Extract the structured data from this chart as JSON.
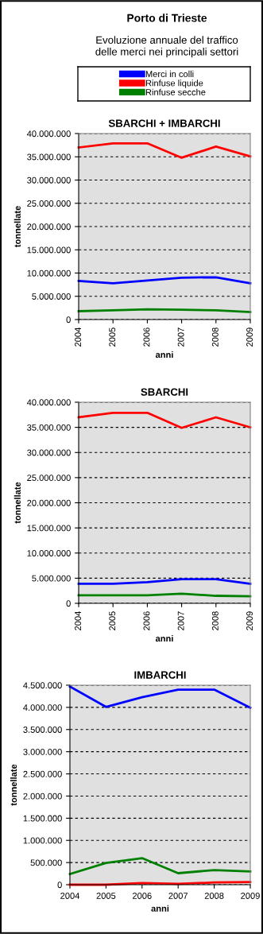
{
  "chart_data": [
    {
      "type": "other",
      "title": "Porto di Trieste",
      "subtitle": "Evoluzione annuale del traffico\ndelle merci nei principali settori"
    },
    {
      "type": "line",
      "title": "SBARCHI + IMBARCHI",
      "xlabel": "anni",
      "ylabel": "tonnellate",
      "categories": [
        "2004",
        "2005",
        "2006",
        "2007",
        "2008",
        "2009"
      ],
      "series": [
        {
          "name": "Merci in colli",
          "color": "#0000ff",
          "values": [
            8300000,
            7800000,
            8400000,
            9000000,
            9100000,
            7800000
          ]
        },
        {
          "name": "Rinfuse liquide",
          "color": "#ff0000",
          "values": [
            37000000,
            37900000,
            37900000,
            34800000,
            37200000,
            35100000
          ]
        },
        {
          "name": "Rinfuse secche",
          "color": "#008000",
          "values": [
            1800000,
            2000000,
            2200000,
            2100000,
            2000000,
            1600000
          ]
        }
      ],
      "ylim": [
        0,
        40000000
      ],
      "yticks": [
        0,
        {
          "value": 5000000,
          "label": "5.000.000"
        },
        {
          "value": 10000000,
          "label": "10.000.000"
        },
        {
          "value": 15000000,
          "label": "15.000.000"
        },
        {
          "value": 20000000,
          "label": "20.000.000"
        },
        {
          "value": 25000000,
          "label": "25.000.000"
        },
        {
          "value": 30000000,
          "label": "30.000.000"
        },
        {
          "value": 35000000,
          "label": "35.000.000"
        },
        {
          "value": 40000000,
          "label": "40.000.000"
        }
      ],
      "grid": "y",
      "legend": "top",
      "line_style": "solid"
    },
    {
      "type": "line",
      "title": "SBARCHI",
      "xlabel": "anni",
      "ylabel": "tonnellate",
      "categories": [
        "2004",
        "2005",
        "2006",
        "2007",
        "2008",
        "2009"
      ],
      "series": [
        {
          "color": "#0000ff",
          "values": [
            3900000,
            3900000,
            4200000,
            4800000,
            4800000,
            3900000
          ]
        },
        {
          "color": "#ff0000",
          "values": [
            37000000,
            37900000,
            37900000,
            34900000,
            37000000,
            35000000
          ]
        },
        {
          "color": "#008000",
          "values": [
            1600000,
            1600000,
            1600000,
            1900000,
            1500000,
            1400000
          ]
        }
      ],
      "ylim": [
        0,
        40000000
      ],
      "yticks": [
        0,
        {
          "value": 5000000,
          "label": "5.000.000"
        },
        {
          "value": 10000000,
          "label": "10.000.000"
        },
        {
          "value": 15000000,
          "label": "15.000.000"
        },
        {
          "value": 20000000,
          "label": "20.000.000"
        },
        {
          "value": 25000000,
          "label": "25.000.000"
        },
        {
          "value": 30000000,
          "label": "30.000.000"
        },
        {
          "value": 35000000,
          "label": "35.000.000"
        },
        {
          "value": 40000000,
          "label": "40.000.000"
        }
      ],
      "grid": "y",
      "line_style": "solid"
    },
    {
      "type": "line",
      "title": "IMBARCHI",
      "xlabel": "anni",
      "ylabel": "tonnellate",
      "categories": [
        "2004",
        "2005",
        "2006",
        "2007",
        "2008",
        "2009"
      ],
      "series": [
        {
          "color": "#0000ff",
          "values": [
            4470000,
            4010000,
            4230000,
            4400000,
            4400000,
            3990000
          ]
        },
        {
          "color": "#ff0000",
          "values": [
            0,
            0,
            40000,
            20000,
            50000,
            60000
          ]
        },
        {
          "color": "#008000",
          "values": [
            240000,
            490000,
            600000,
            260000,
            330000,
            300000
          ]
        }
      ],
      "ylim": [
        0,
        4500000
      ],
      "yticks": [
        0,
        {
          "value": 500000,
          "label": "500.000"
        },
        {
          "value": 1000000,
          "label": "1.000.000"
        },
        {
          "value": 1500000,
          "label": "1.500.000"
        },
        {
          "value": 2000000,
          "label": "2.000.000"
        },
        {
          "value": 2500000,
          "label": "2.500.000"
        },
        {
          "value": 3000000,
          "label": "3.000.000"
        },
        {
          "value": 3500000,
          "label": "3.500.000"
        },
        {
          "value": 4000000,
          "label": "4.000.000"
        },
        {
          "value": 4500000,
          "label": "4.500.000"
        }
      ],
      "grid": "y",
      "line_style": "solid"
    }
  ]
}
